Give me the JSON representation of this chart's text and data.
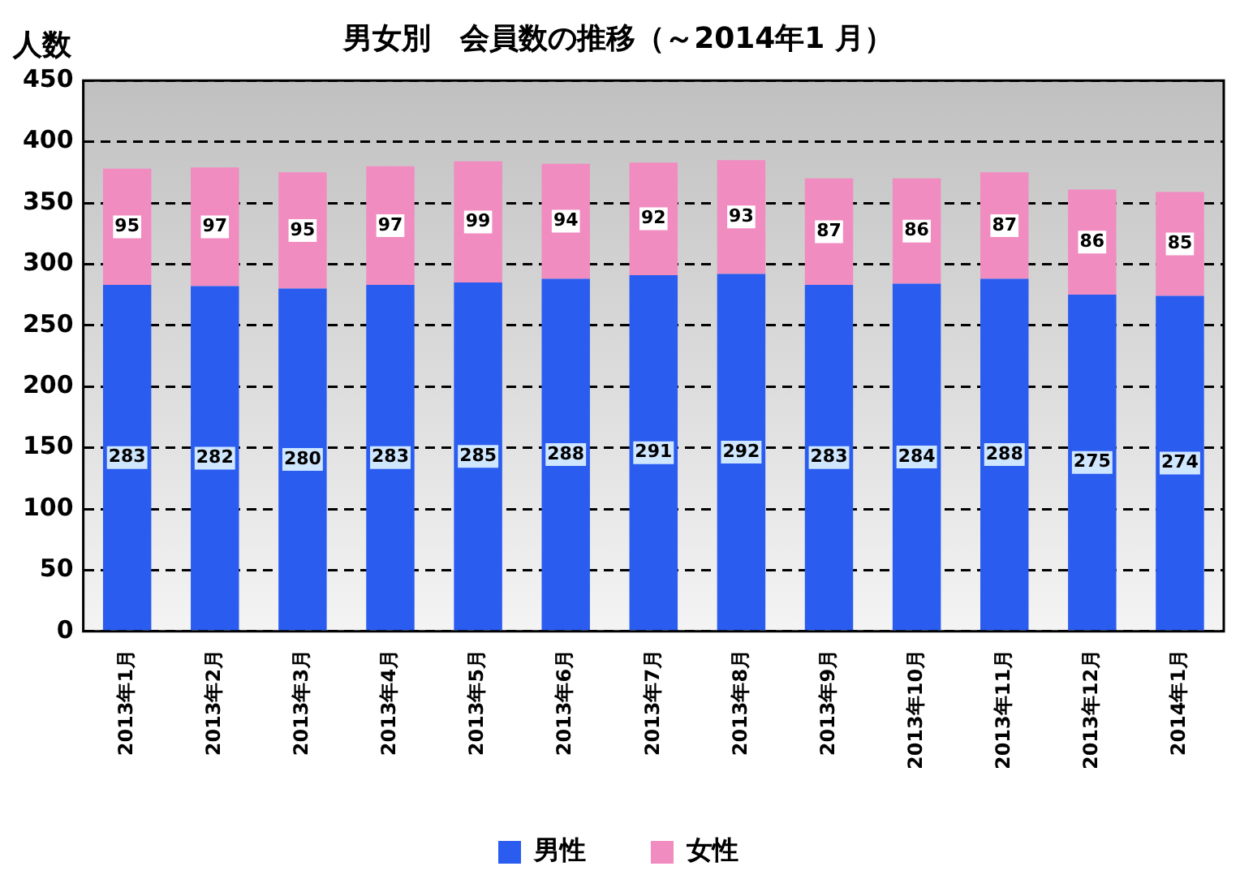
{
  "chart_data": {
    "type": "bar",
    "title": "男女別　会員数の推移（～2014年1 月）",
    "ylabel": "人数",
    "stacked": true,
    "categories": [
      "2013年1月",
      "2013年2月",
      "2013年3月",
      "2013年4月",
      "2013年5月",
      "2013年6月",
      "2013年7月",
      "2013年8月",
      "2013年9月",
      "2013年10月",
      "2013年11月",
      "2013年12月",
      "2014年1月"
    ],
    "series": [
      {
        "name": "男性",
        "color": "#2a5cf0",
        "values": [
          283,
          282,
          280,
          283,
          285,
          288,
          291,
          292,
          283,
          284,
          288,
          275,
          274
        ]
      },
      {
        "name": "女性",
        "color": "#f08cc0",
        "values": [
          95,
          97,
          95,
          97,
          99,
          94,
          92,
          93,
          87,
          86,
          87,
          86,
          85
        ]
      }
    ],
    "ylim": [
      0,
      450
    ],
    "yticks": [
      0,
      50,
      100,
      150,
      200,
      250,
      300,
      350,
      400,
      450
    ],
    "grid": "y",
    "legend": "bottom",
    "data_labels": true
  }
}
